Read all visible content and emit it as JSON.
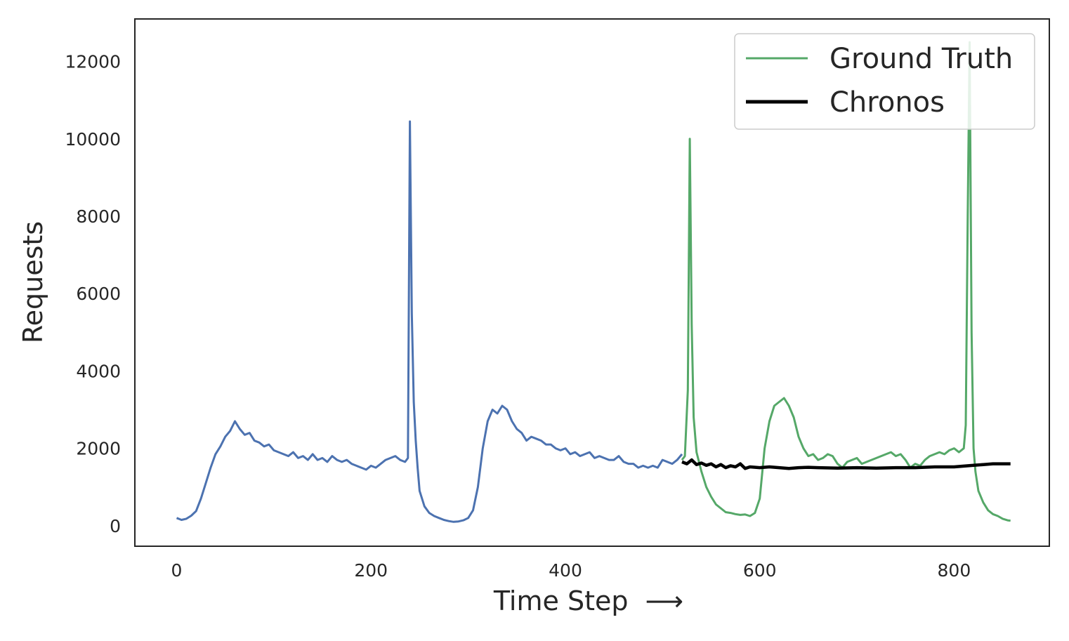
{
  "chart_data": {
    "type": "line",
    "xlabel": "Time Step  ⟶",
    "ylabel": "Requests",
    "xlim": [
      -43,
      898
    ],
    "ylim": [
      -530,
      13100
    ],
    "xticks": [
      0,
      200,
      400,
      600,
      800
    ],
    "yticks": [
      0,
      2000,
      4000,
      6000,
      8000,
      10000,
      12000
    ],
    "grid": false,
    "legend": {
      "position": "top-right"
    },
    "series": [
      {
        "color": "#4c72b0",
        "role": "context",
        "x": [
          0,
          5,
          10,
          15,
          20,
          25,
          30,
          35,
          40,
          45,
          50,
          55,
          60,
          65,
          70,
          75,
          80,
          85,
          90,
          95,
          100,
          105,
          110,
          115,
          120,
          125,
          130,
          135,
          140,
          145,
          150,
          155,
          160,
          165,
          170,
          175,
          180,
          185,
          190,
          195,
          200,
          205,
          210,
          215,
          220,
          225,
          230,
          235,
          238,
          240,
          242,
          244,
          246,
          248,
          250,
          255,
          260,
          265,
          270,
          275,
          280,
          285,
          290,
          295,
          300,
          305,
          310,
          315,
          320,
          325,
          330,
          335,
          340,
          345,
          350,
          355,
          360,
          365,
          370,
          375,
          380,
          385,
          390,
          395,
          400,
          405,
          410,
          415,
          420,
          425,
          430,
          435,
          440,
          445,
          450,
          455,
          460,
          465,
          470,
          475,
          480,
          485,
          490,
          495,
          500,
          505,
          510,
          515,
          520
        ],
        "y": [
          200,
          150,
          180,
          260,
          380,
          700,
          1100,
          1500,
          1850,
          2050,
          2300,
          2450,
          2700,
          2500,
          2350,
          2400,
          2200,
          2150,
          2050,
          2100,
          1950,
          1900,
          1850,
          1800,
          1900,
          1750,
          1800,
          1700,
          1850,
          1700,
          1750,
          1650,
          1800,
          1700,
          1650,
          1700,
          1600,
          1550,
          1500,
          1450,
          1550,
          1500,
          1600,
          1700,
          1750,
          1800,
          1700,
          1650,
          1750,
          10450,
          5500,
          3200,
          2200,
          1500,
          900,
          500,
          330,
          250,
          200,
          150,
          120,
          100,
          110,
          140,
          200,
          400,
          1000,
          2000,
          2700,
          3000,
          2900,
          3100,
          3000,
          2700,
          2500,
          2400,
          2200,
          2300,
          2250,
          2200,
          2100,
          2100,
          2000,
          1950,
          2000,
          1850,
          1900,
          1800,
          1850,
          1900,
          1750,
          1800,
          1750,
          1700,
          1700,
          1800,
          1650,
          1600,
          1600,
          1500,
          1550,
          1500,
          1550,
          1500,
          1700,
          1650,
          1600,
          1700,
          1850
        ]
      },
      {
        "name": "Ground Truth",
        "color": "#55a868",
        "x": [
          520,
          523,
          526,
          528,
          530,
          532,
          535,
          540,
          545,
          550,
          555,
          560,
          565,
          570,
          575,
          580,
          585,
          590,
          595,
          600,
          605,
          610,
          615,
          620,
          625,
          630,
          635,
          640,
          645,
          650,
          655,
          660,
          665,
          670,
          675,
          680,
          685,
          690,
          695,
          700,
          705,
          710,
          715,
          720,
          725,
          730,
          735,
          740,
          745,
          750,
          755,
          760,
          765,
          770,
          775,
          780,
          785,
          790,
          795,
          800,
          805,
          810,
          812,
          814,
          816,
          818,
          820,
          822,
          825,
          830,
          835,
          840,
          845,
          850,
          855,
          858
        ],
        "y": [
          1700,
          1800,
          3500,
          10000,
          5200,
          2800,
          1900,
          1400,
          1000,
          750,
          550,
          450,
          350,
          330,
          300,
          280,
          290,
          250,
          330,
          700,
          2000,
          2700,
          3100,
          3200,
          3300,
          3100,
          2800,
          2300,
          2000,
          1800,
          1850,
          1700,
          1750,
          1850,
          1800,
          1600,
          1500,
          1650,
          1700,
          1750,
          1600,
          1650,
          1700,
          1750,
          1800,
          1850,
          1900,
          1800,
          1850,
          1700,
          1500,
          1600,
          1550,
          1700,
          1800,
          1850,
          1900,
          1850,
          1950,
          2000,
          1900,
          2000,
          2600,
          8000,
          12500,
          5000,
          2000,
          1400,
          900,
          600,
          400,
          300,
          250,
          180,
          140,
          130
        ]
      },
      {
        "name": "Chronos",
        "color": "#000000",
        "x": [
          520,
          525,
          530,
          535,
          540,
          545,
          550,
          555,
          560,
          565,
          570,
          575,
          580,
          585,
          590,
          600,
          610,
          620,
          630,
          640,
          650,
          660,
          680,
          700,
          720,
          740,
          760,
          780,
          800,
          810,
          820,
          830,
          840,
          850,
          858
        ],
        "y": [
          1650,
          1600,
          1700,
          1580,
          1620,
          1560,
          1600,
          1520,
          1580,
          1500,
          1550,
          1520,
          1600,
          1480,
          1520,
          1500,
          1520,
          1500,
          1480,
          1500,
          1510,
          1500,
          1490,
          1500,
          1490,
          1500,
          1500,
          1520,
          1520,
          1540,
          1560,
          1580,
          1600,
          1600,
          1600
        ]
      }
    ]
  }
}
